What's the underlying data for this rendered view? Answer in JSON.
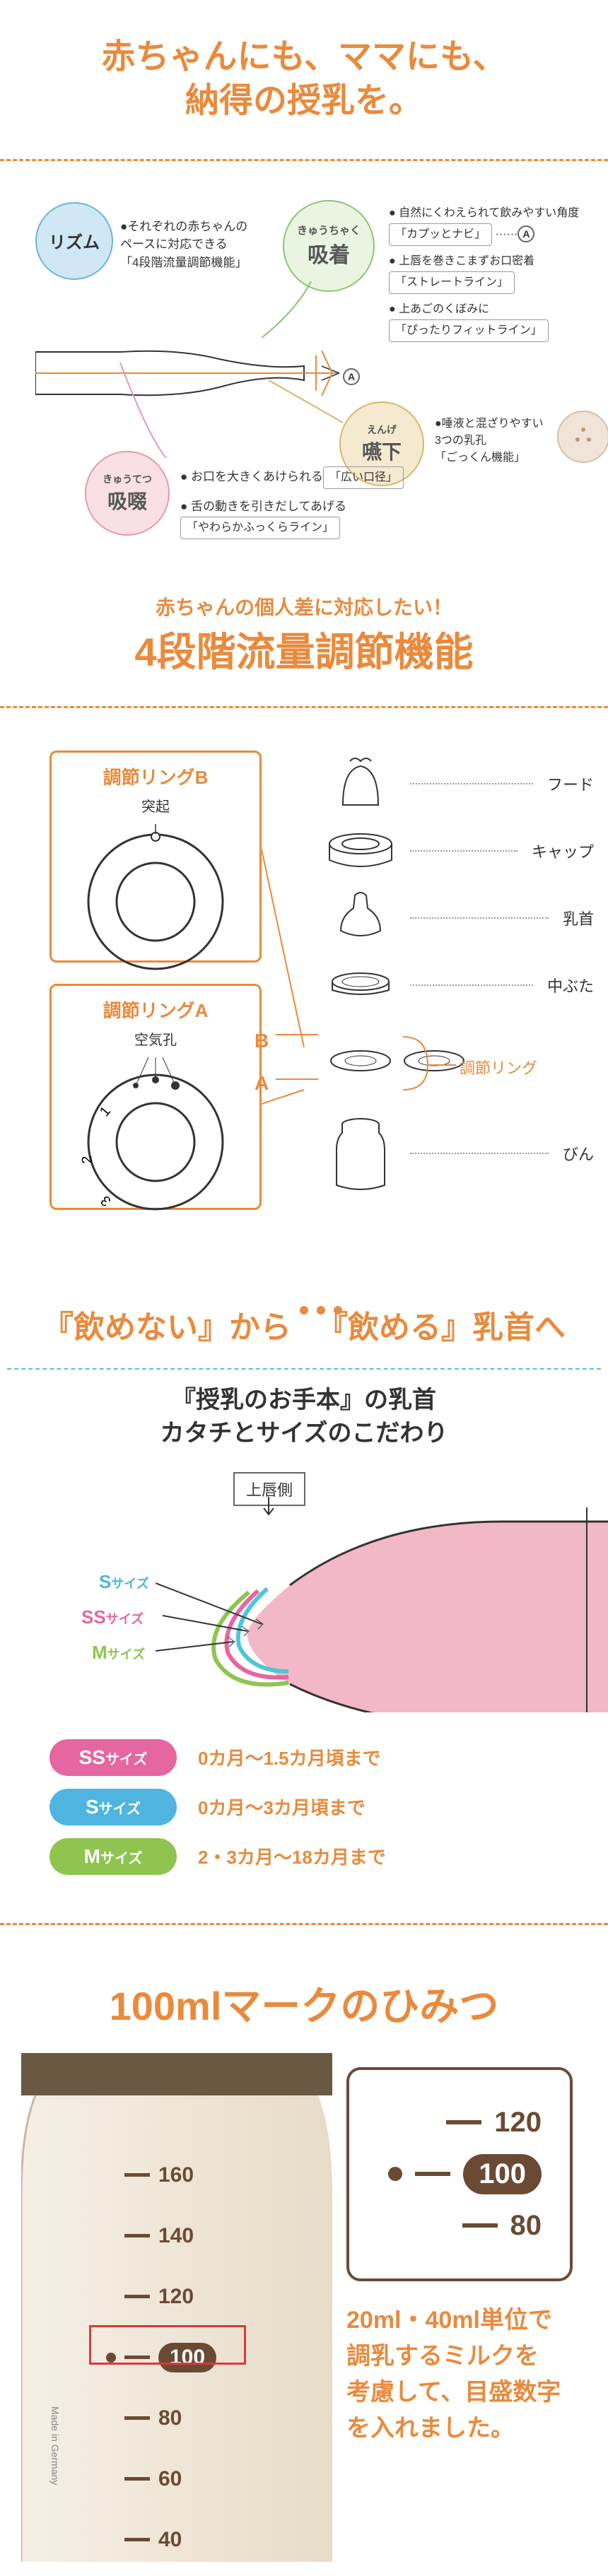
{
  "colors": {
    "primary": "#e98a3c",
    "blue_light": "#d0e8f5",
    "blue_border": "#6ab5db",
    "green_light": "#e9f5e0",
    "green_border": "#8bc474",
    "tan_light": "#f5e9d0",
    "tan_border": "#d4b868",
    "pink_light": "#f8e0e5",
    "pink_border": "#e59aaa",
    "ss_pill": "#e566a0",
    "s_pill": "#4fb5e0",
    "m_pill": "#8fc450",
    "brown": "#6b4a35",
    "red_accent": "#d93a3a",
    "nipple_pink": "#f2b8c8",
    "nipple_edge_cyan": "#4fc5d8",
    "nipple_edge_green": "#8fc450",
    "nipple_edge_pink": "#e566a0"
  },
  "section1": {
    "title_line1": "赤ちゃんにも、ママにも、",
    "title_line2": "納得の授乳を。"
  },
  "diagram1": {
    "rhythm": {
      "label": "リズム",
      "desc": "それぞれの赤ちゃんの\nペースに対応できる\n「4段階流量調節機能」"
    },
    "suction": {
      "ruby": "きゅうちゃく",
      "label": "吸着",
      "bullets": [
        {
          "text": "自然にくわえられて飲みやすい角度",
          "box": "「カプッとナビ」",
          "marker": "A",
          "dotted": true
        },
        {
          "text": "上唇を巻きこまずお口密着",
          "box": "「ストレートライン」"
        },
        {
          "text": "上あごのくぼみに",
          "box": "「ぴったりフィットライン」"
        }
      ]
    },
    "swallow": {
      "ruby": "えんげ",
      "label": "嚥下",
      "desc": "唾液と混ざりやすい\n3つの乳孔\n「ごっくん機能」"
    },
    "suck": {
      "ruby": "きゅうてつ",
      "label": "吸啜",
      "lines": [
        {
          "text": "お口を大きくあけられる",
          "box": "「広い口径」"
        },
        {
          "text": "舌の動きを引きだしてあげる",
          "box": "「やわらかふっくらライン」"
        }
      ]
    },
    "angle_marker": "A"
  },
  "section2": {
    "subtitle": "赤ちゃんの個人差に対応したい！",
    "title": "4段階流量調節機能",
    "ring_b": {
      "title": "調節リングB",
      "sub": "突起"
    },
    "ring_a": {
      "title": "調節リングA",
      "sub": "空気孔",
      "nums": [
        "1",
        "2",
        "3"
      ]
    },
    "leads": {
      "b": "B",
      "a": "A"
    },
    "parts": [
      "フード",
      "キャップ",
      "乳首",
      "中ぶた",
      "調節リング",
      "びん"
    ]
  },
  "section3": {
    "title_pre": "『飲めない』から",
    "title_post": "『飲める』乳首へ",
    "subtitle_line1": "『授乳のお手本』の乳首",
    "subtitle_line2": "カタチとサイズのこだわり",
    "upper_lip": "上唇側",
    "size_labels": {
      "s": "Sサイズ",
      "ss": "SSサイズ",
      "m": "Mサイズ"
    },
    "sizes": [
      {
        "pill": "SSサイズ",
        "class": "pill-ss",
        "desc": "0カ月～1.5カ月頃まで"
      },
      {
        "pill": "Sサイズ",
        "class": "pill-s",
        "desc": "0カ月～3カ月頃まで"
      },
      {
        "pill": "Mサイズ",
        "class": "pill-m",
        "desc": "2・3カ月～18カ月まで"
      }
    ]
  },
  "section4": {
    "title": "100mlマークのひみつ",
    "scale_main": [
      "160",
      "140",
      "120",
      "100",
      "80",
      "60",
      "40"
    ],
    "scale_box": {
      "top": "120",
      "mid": "100",
      "bot": "80"
    },
    "made_in": "Made in Germany",
    "desc": "20ml・40ml単位で\n調乳するミルクを\n考慮して、目盛数字\nを入れました。"
  }
}
